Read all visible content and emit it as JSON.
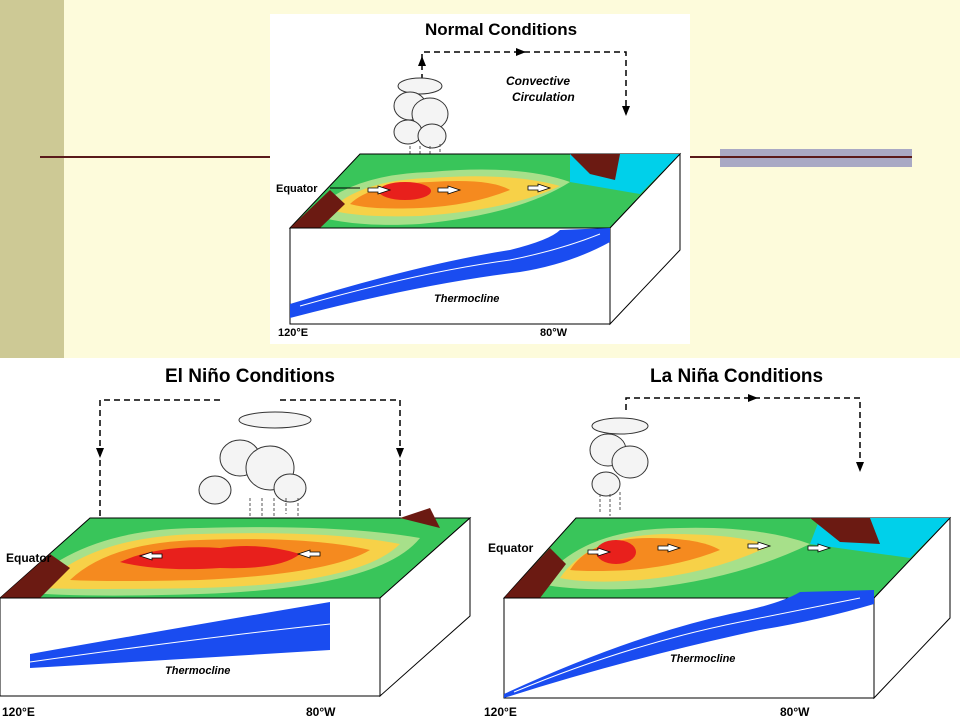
{
  "panels": {
    "normal": {
      "title": "Normal Conditions",
      "circulation_label_1": "Convective",
      "circulation_label_2": "Circulation",
      "equator_label": "Equator",
      "thermocline_label": "Thermocline",
      "west_label": "120°E",
      "east_label": "80°W"
    },
    "el_nino": {
      "title": "El Niño Conditions",
      "equator_label": "Equator",
      "thermocline_label": "Thermocline",
      "west_label": "120°E",
      "east_label": "80°W"
    },
    "la_nina": {
      "title": "La Niña Conditions",
      "equator_label": "Equator",
      "thermocline_label": "Thermocline",
      "west_label": "120°E",
      "east_label": "80°W"
    }
  },
  "colors": {
    "slide_background": "#fdfbdb",
    "side_bar": "#cdc995",
    "rule": "#5a1a1a",
    "rule_accent": "#a9a9c4",
    "warm_core": "#e8201c",
    "warm": "#f58a1f",
    "mid_warm": "#f7d148",
    "cool": "#a7e08a",
    "cooler": "#39c55a",
    "cold": "#00d0ea",
    "thermocline_water": "#1a4cf0",
    "land": "#6b1a12"
  }
}
